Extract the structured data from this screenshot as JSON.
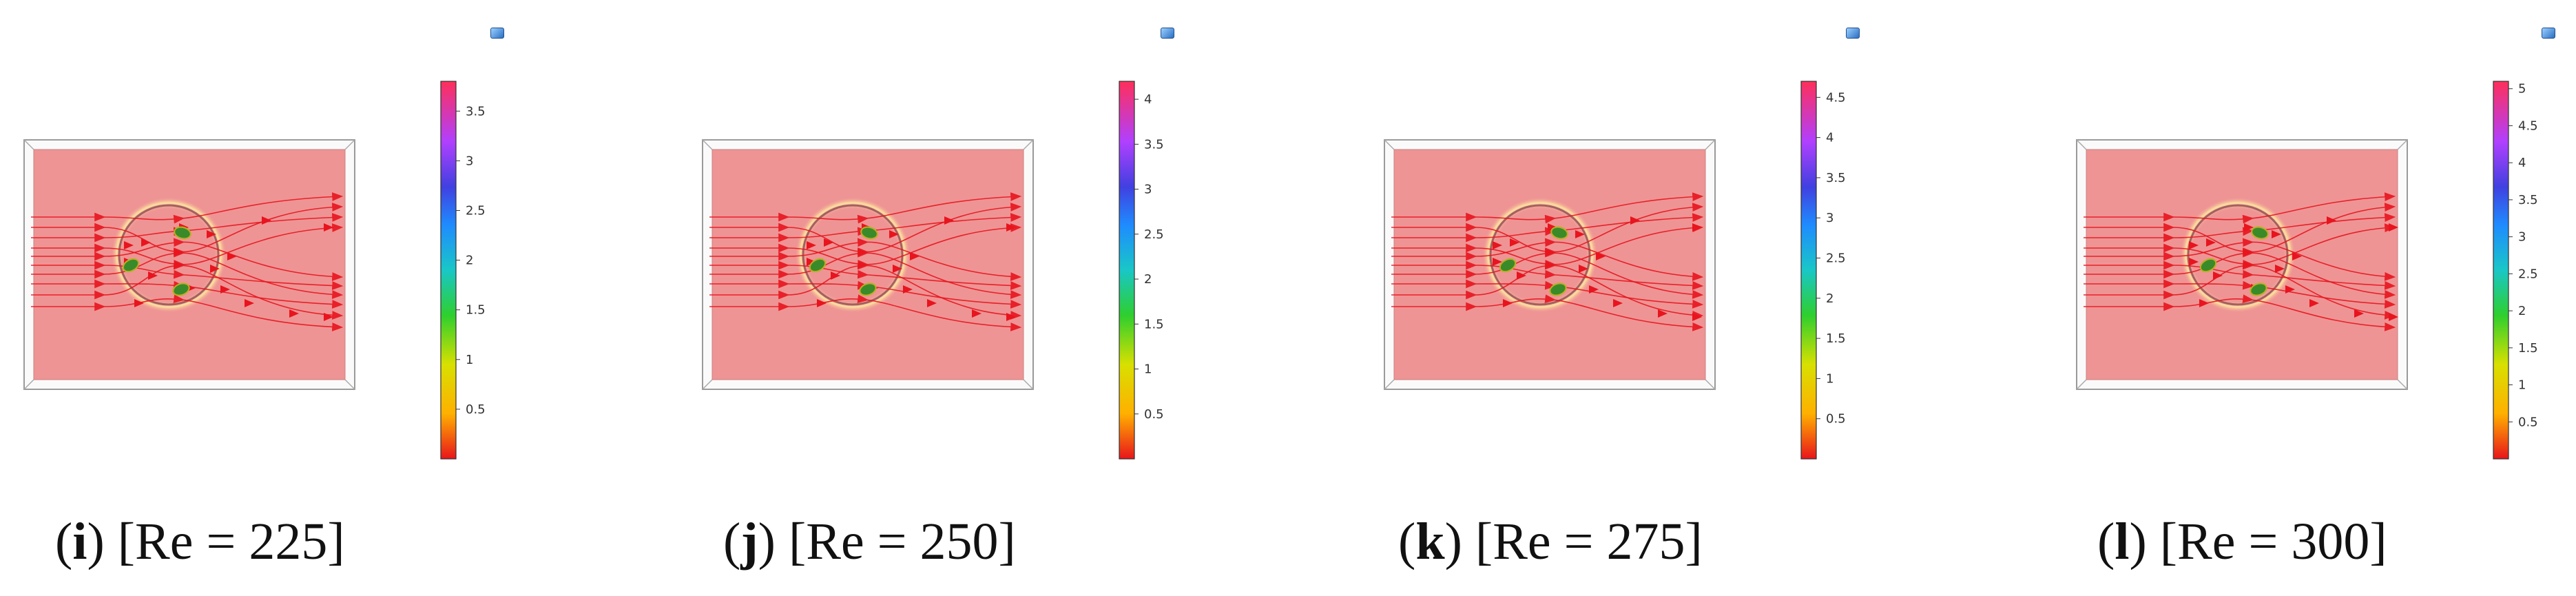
{
  "panels": [
    {
      "letter": "i",
      "label": "[Re = 225]",
      "colorbar_ticks": [
        "3.5",
        "3",
        "2.5",
        "2",
        "1.5",
        "1",
        "0.5"
      ],
      "colorbar_max": 3.8
    },
    {
      "letter": "j",
      "label": "[Re = 250]",
      "colorbar_ticks": [
        "4",
        "3.5",
        "3",
        "2.5",
        "2",
        "1.5",
        "1",
        "0.5"
      ],
      "colorbar_max": 4.2
    },
    {
      "letter": "k",
      "label": "[Re = 275]",
      "colorbar_ticks": [
        "4.5",
        "4",
        "3.5",
        "3",
        "2.5",
        "2",
        "1.5",
        "1",
        "0.5"
      ],
      "colorbar_max": 4.7
    },
    {
      "letter": "l",
      "label": "[Re = 300]",
      "colorbar_ticks": [
        "5",
        "4.5",
        "4",
        "3.5",
        "3",
        "2.5",
        "2",
        "1.5",
        "1",
        "0.5"
      ],
      "colorbar_max": 5.1
    }
  ],
  "colors": {
    "domain_fill": "#ee9494",
    "streamline": "#e8141e",
    "particle": "#3a8a2a"
  },
  "icon": "view-cube-icon"
}
